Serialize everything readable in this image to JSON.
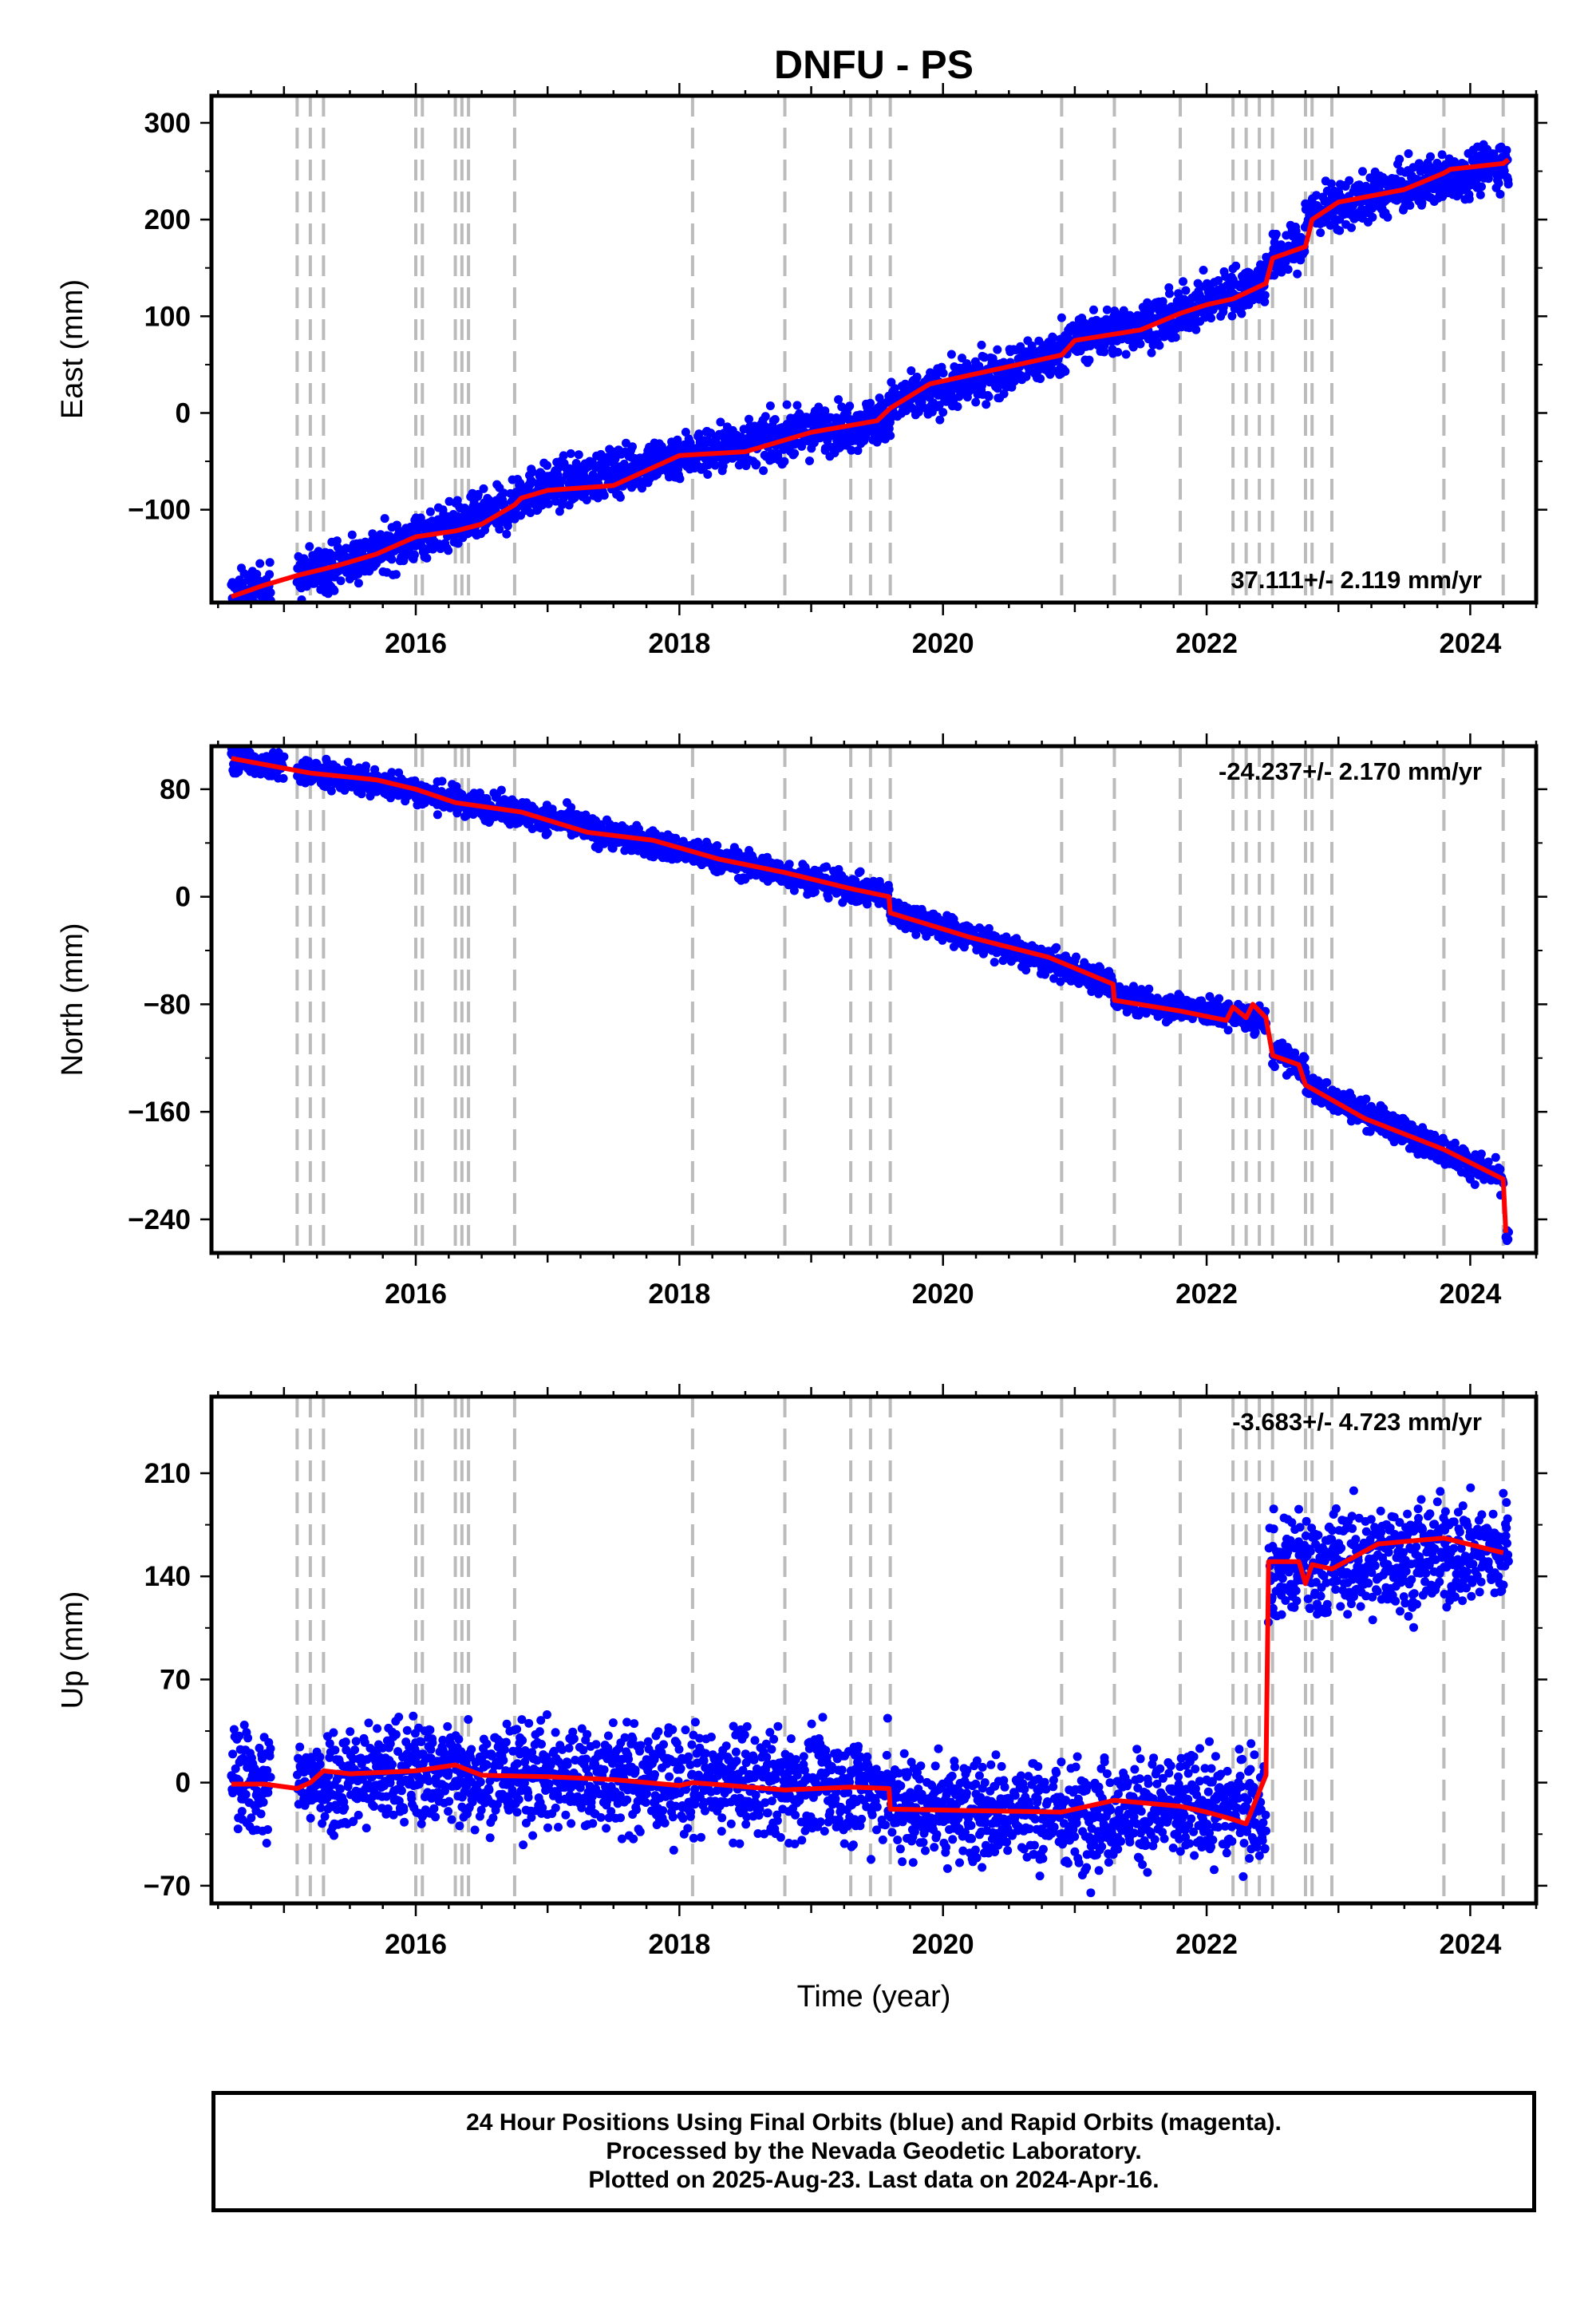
{
  "figure": {
    "title": "DNFU - PS",
    "xlabel": "Time (year)"
  },
  "colors": {
    "final_orbits": "#0000ff",
    "model_fit": "#ff0000",
    "event_lines": "#bbbbbb",
    "frame": "#000000"
  },
  "footer": {
    "line1": "24 Hour Positions Using Final Orbits (blue) and Rapid Orbits (magenta).",
    "line2": "Processed by the Nevada Geodetic Laboratory.",
    "line3": "Plotted on 2025-Aug-23. Last data on 2024-Apr-16."
  },
  "chart_data": [
    {
      "type": "scatter",
      "panel": "east",
      "ylabel": "East (mm)",
      "rate_label": "37.111+/- 2.119 mm/yr",
      "rate_position": "bottom-right",
      "xlim": [
        2014.45,
        2024.5
      ],
      "ylim": [
        -196,
        328
      ],
      "x_ticks": [
        2016,
        2018,
        2020,
        2022,
        2024
      ],
      "x_tick_labels": [
        "2016",
        "2018",
        "2020",
        "2022",
        "2024"
      ],
      "y_ticks": [
        300,
        200,
        100,
        0,
        -100
      ],
      "y_tick_labels": [
        "300",
        "200",
        "100",
        "0",
        "−100"
      ],
      "event_lines": [
        2015.1,
        2015.2,
        2015.3,
        2016.0,
        2016.05,
        2016.3,
        2016.35,
        2016.4,
        2016.75,
        2018.1,
        2018.8,
        2019.3,
        2019.45,
        2019.6,
        2020.9,
        2021.3,
        2021.8,
        2022.2,
        2022.3,
        2022.4,
        2022.5,
        2022.75,
        2022.8,
        2022.95,
        2023.8,
        2024.25
      ],
      "fit_line": {
        "x": [
          2014.6,
          2014.85,
          2015.1,
          2015.4,
          2015.7,
          2016.0,
          2016.3,
          2016.5,
          2016.75,
          2016.8,
          2017.0,
          2017.5,
          2018.0,
          2018.5,
          2019.0,
          2019.5,
          2019.6,
          2019.9,
          2020.5,
          2020.9,
          2021.0,
          2021.5,
          2021.8,
          2022.0,
          2022.2,
          2022.45,
          2022.5,
          2022.75,
          2022.8,
          2023.0,
          2023.5,
          2023.8,
          2023.85,
          2024.25,
          2024.29
        ],
        "y": [
          -190,
          -178,
          -168,
          -158,
          -146,
          -128,
          -122,
          -115,
          -95,
          -88,
          -80,
          -75,
          -44,
          -40,
          -20,
          -8,
          5,
          30,
          48,
          60,
          75,
          86,
          103,
          112,
          118,
          134,
          160,
          172,
          200,
          218,
          231,
          248,
          252,
          258,
          262
        ]
      },
      "scatter": {
        "segments": [
          [
            2014.6,
            -190,
            2014.9,
            -180
          ],
          [
            2015.1,
            -170,
            2016.0,
            -130
          ],
          [
            2016.0,
            -128,
            2016.75,
            -98
          ],
          [
            2016.75,
            -85,
            2018.0,
            -45
          ],
          [
            2018.0,
            -44,
            2019.6,
            -5
          ],
          [
            2019.6,
            8,
            2020.9,
            62
          ],
          [
            2020.9,
            72,
            2021.8,
            100
          ],
          [
            2021.8,
            105,
            2022.45,
            138
          ],
          [
            2022.45,
            155,
            2022.75,
            175
          ],
          [
            2022.75,
            205,
            2024.29,
            260
          ]
        ],
        "spread": 12
      }
    },
    {
      "type": "scatter",
      "panel": "north",
      "ylabel": "North (mm)",
      "rate_label": "-24.237+/- 2.170 mm/yr",
      "rate_position": "top-right",
      "xlim": [
        2014.45,
        2024.5
      ],
      "ylim": [
        -265,
        112
      ],
      "x_ticks": [
        2016,
        2018,
        2020,
        2022,
        2024
      ],
      "x_tick_labels": [
        "2016",
        "2018",
        "2020",
        "2022",
        "2024"
      ],
      "y_ticks": [
        80,
        0,
        -80,
        -160,
        -240
      ],
      "y_tick_labels": [
        "80",
        "0",
        "−80",
        "−160",
        "−240"
      ],
      "event_lines": [
        2015.1,
        2015.2,
        2015.3,
        2016.0,
        2016.05,
        2016.3,
        2016.35,
        2016.4,
        2016.75,
        2018.1,
        2018.8,
        2019.3,
        2019.45,
        2019.6,
        2020.9,
        2021.3,
        2021.8,
        2022.2,
        2022.3,
        2022.4,
        2022.5,
        2022.75,
        2022.8,
        2022.95,
        2023.8,
        2024.25
      ],
      "fit_line": {
        "x": [
          2014.6,
          2015.2,
          2015.7,
          2016.0,
          2016.3,
          2016.8,
          2017.3,
          2017.8,
          2018.3,
          2018.8,
          2019.3,
          2019.59,
          2019.6,
          2020.2,
          2020.8,
          2021.29,
          2021.3,
          2021.8,
          2022.15,
          2022.2,
          2022.3,
          2022.35,
          2022.45,
          2022.5,
          2022.7,
          2022.75,
          2023.2,
          2023.8,
          2024.25,
          2024.27
        ],
        "y": [
          103,
          92,
          87,
          80,
          70,
          63,
          48,
          42,
          28,
          18,
          6,
          0,
          -12,
          -30,
          -45,
          -65,
          -77,
          -85,
          -92,
          -82,
          -90,
          -80,
          -90,
          -118,
          -125,
          -140,
          -165,
          -188,
          -210,
          -250
        ]
      },
      "scatter": {
        "segments": [
          [
            2014.6,
            103,
            2015.0,
            96
          ],
          [
            2015.1,
            94,
            2016.0,
            80
          ],
          [
            2016.0,
            78,
            2017.3,
            52
          ],
          [
            2017.3,
            50,
            2019.59,
            0
          ],
          [
            2019.6,
            -10,
            2021.29,
            -65
          ],
          [
            2021.3,
            -75,
            2022.45,
            -92
          ],
          [
            2022.5,
            -115,
            2022.75,
            -128
          ],
          [
            2022.75,
            -140,
            2024.25,
            -210
          ],
          [
            2024.27,
            -250,
            2024.29,
            -253
          ]
        ],
        "spread": 5
      }
    },
    {
      "type": "scatter",
      "panel": "up",
      "ylabel": "Up (mm)",
      "rate_label": "-3.683+/- 4.723 mm/yr",
      "rate_position": "top-right",
      "xlim": [
        2014.45,
        2024.5
      ],
      "ylim": [
        -82,
        262
      ],
      "x_ticks": [
        2016,
        2018,
        2020,
        2022,
        2024
      ],
      "x_tick_labels": [
        "2016",
        "2018",
        "2020",
        "2022",
        "2024"
      ],
      "y_ticks": [
        210,
        140,
        70,
        0,
        -70
      ],
      "y_tick_labels": [
        "210",
        "140",
        "70",
        "0",
        "−70"
      ],
      "event_lines": [
        2015.1,
        2015.2,
        2015.3,
        2016.0,
        2016.05,
        2016.3,
        2016.35,
        2016.4,
        2016.75,
        2018.1,
        2018.8,
        2019.3,
        2019.45,
        2019.6,
        2020.9,
        2021.3,
        2021.8,
        2022.2,
        2022.3,
        2022.4,
        2022.5,
        2022.75,
        2022.8,
        2022.95,
        2023.8,
        2024.25
      ],
      "fit_line": {
        "x": [
          2014.6,
          2014.85,
          2015.1,
          2015.2,
          2015.3,
          2015.5,
          2016.0,
          2016.3,
          2016.5,
          2017.0,
          2017.5,
          2018.0,
          2018.1,
          2018.8,
          2019.3,
          2019.59,
          2019.6,
          2020.9,
          2021.3,
          2021.8,
          2022.0,
          2022.2,
          2022.3,
          2022.45,
          2022.47,
          2022.7,
          2022.75,
          2022.8,
          2022.95,
          2023.3,
          2023.8,
          2024.25
        ],
        "y": [
          -1,
          -1,
          -4,
          0,
          8,
          6,
          8,
          12,
          5,
          4,
          2,
          -2,
          0,
          -5,
          -3,
          -4,
          -18,
          -20,
          -12,
          -16,
          -20,
          -25,
          -28,
          5,
          150,
          150,
          135,
          148,
          145,
          162,
          166,
          156
        ]
      },
      "scatter": {
        "segments": [
          [
            2014.6,
            2,
            2014.9,
            -3
          ],
          [
            2015.1,
            0,
            2016.0,
            8
          ],
          [
            2016.0,
            8,
            2017.5,
            3
          ],
          [
            2017.5,
            2,
            2019.59,
            -4
          ],
          [
            2019.6,
            -15,
            2020.9,
            -22
          ],
          [
            2020.9,
            -22,
            2022.45,
            -15
          ],
          [
            2022.47,
            145,
            2024.29,
            158
          ]
        ],
        "spread": 18
      }
    }
  ]
}
